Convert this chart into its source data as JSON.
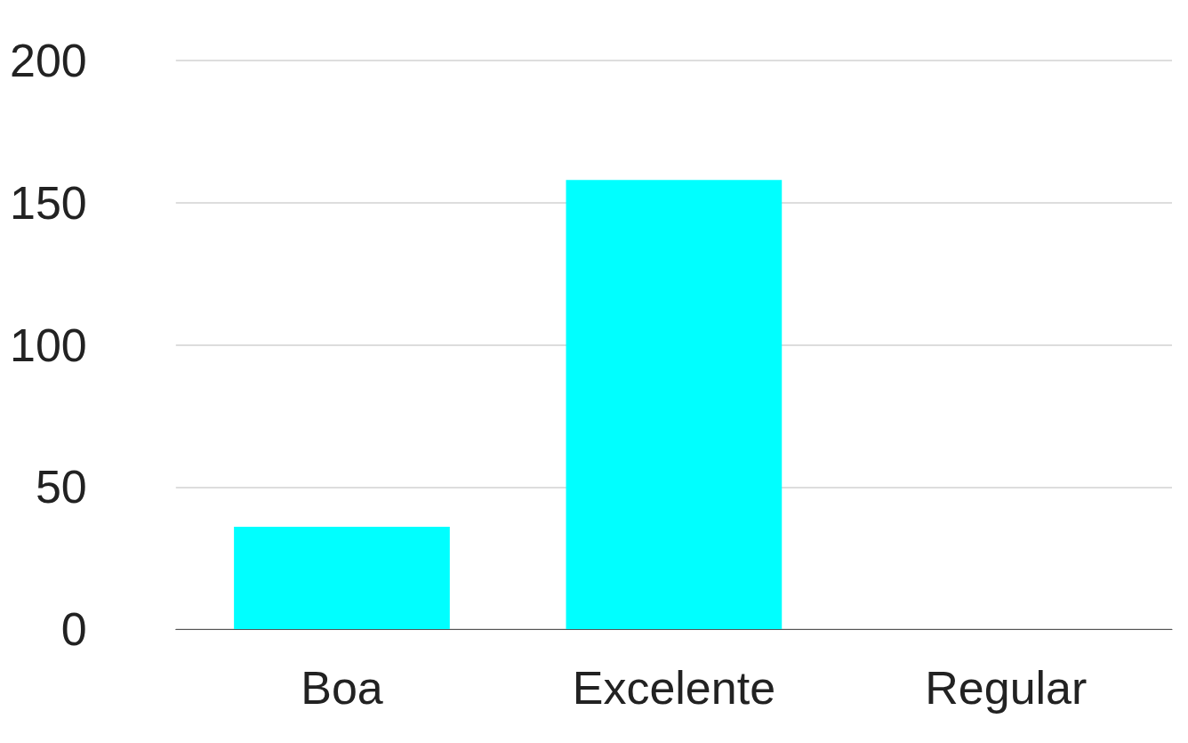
{
  "chart_data": {
    "type": "bar",
    "categories": [
      "Boa",
      "Excelente",
      "Regular"
    ],
    "values": [
      36,
      158,
      0
    ],
    "color": "#00ffff",
    "ylim": [
      0,
      200
    ],
    "yticks": [
      0,
      50,
      100,
      150,
      200
    ],
    "grid": "y"
  }
}
